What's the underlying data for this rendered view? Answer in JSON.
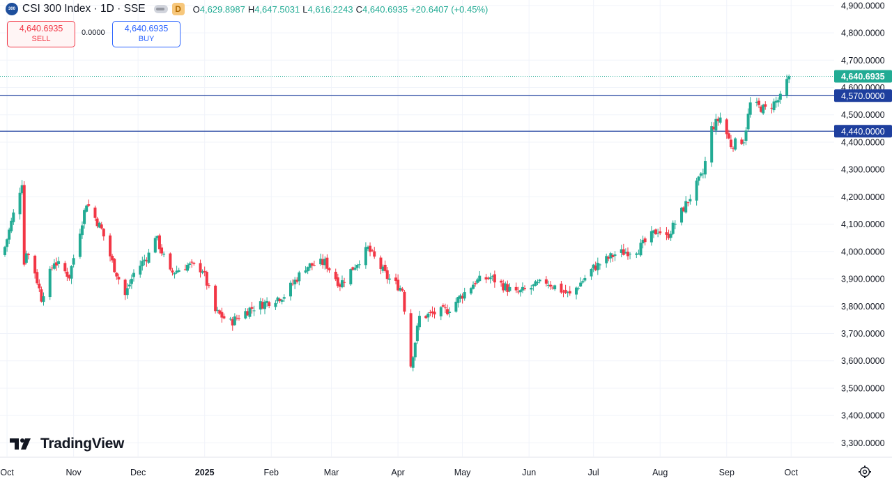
{
  "header": {
    "symbol_icon": "300",
    "title": "CSI 300 Index · 1D · SSE",
    "badge": "D",
    "o_label": "O",
    "o_value": "4,629.8987",
    "h_label": "H",
    "h_value": "4,647.5031",
    "l_label": "L",
    "l_value": "4,616.2243",
    "c_label": "C",
    "c_value": "4,640.6935",
    "change": "+20.6407 (+0.45%)"
  },
  "trade": {
    "sell_price": "4,640.6935",
    "sell_label": "SELL",
    "spread": "0.0000",
    "buy_price": "4,640.6935",
    "buy_label": "BUY"
  },
  "branding": {
    "logo_text": "TradingView"
  },
  "colors": {
    "up": "#22ab94",
    "down": "#f23645",
    "hline": "#1e3f9e",
    "last_price": "#22ab94"
  },
  "chart_data": {
    "type": "candlestick",
    "ylim": [
      3250,
      4920
    ],
    "yticks": [
      {
        "v": 4900,
        "label": "4,900.0000"
      },
      {
        "v": 4800,
        "label": "4,800.0000"
      },
      {
        "v": 4700,
        "label": "4,700.0000"
      },
      {
        "v": 4600,
        "label": "4,600.0000"
      },
      {
        "v": 4500,
        "label": "4,500.0000"
      },
      {
        "v": 4400,
        "label": "4,400.0000"
      },
      {
        "v": 4300,
        "label": "4,300.0000"
      },
      {
        "v": 4200,
        "label": "4,200.0000"
      },
      {
        "v": 4100,
        "label": "4,100.0000"
      },
      {
        "v": 4000,
        "label": "4,000.0000"
      },
      {
        "v": 3900,
        "label": "3,900.0000"
      },
      {
        "v": 3800,
        "label": "3,800.0000"
      },
      {
        "v": 3700,
        "label": "3,700.0000"
      },
      {
        "v": 3600,
        "label": "3,600.0000"
      },
      {
        "v": 3500,
        "label": "3,500.0000"
      },
      {
        "v": 3400,
        "label": "3,400.0000"
      },
      {
        "v": 3300,
        "label": "3,300.0000"
      }
    ],
    "xticks": [
      {
        "d": "2024-10-01",
        "label": "Oct"
      },
      {
        "d": "2024-11-01",
        "label": "Nov"
      },
      {
        "d": "2024-12-01",
        "label": "Dec"
      },
      {
        "d": "2025-01-01",
        "label": "2025",
        "bold": true
      },
      {
        "d": "2025-02-01",
        "label": "Feb"
      },
      {
        "d": "2025-03-01",
        "label": "Mar"
      },
      {
        "d": "2025-04-01",
        "label": "Apr"
      },
      {
        "d": "2025-05-01",
        "label": "May"
      },
      {
        "d": "2025-06-01",
        "label": "Jun"
      },
      {
        "d": "2025-07-01",
        "label": "Jul"
      },
      {
        "d": "2025-08-01",
        "label": "Aug"
      },
      {
        "d": "2025-09-01",
        "label": "Sep"
      },
      {
        "d": "2025-10-01",
        "label": "Oct"
      }
    ],
    "x_start": "2024-09-30",
    "x_end": "2025-10-22",
    "horizontal_lines": [
      {
        "value": 4570,
        "label": "4,570.0000"
      },
      {
        "value": 4440,
        "label": "4,440.0000"
      }
    ],
    "last_price": {
      "value": 4640.6935,
      "label": "4,640.6935"
    },
    "anchors": [
      {
        "d": "2024-09-30",
        "c": 4017
      },
      {
        "d": "2024-10-08",
        "c": 4256
      },
      {
        "d": "2024-10-09",
        "c": 3955
      },
      {
        "d": "2024-10-10",
        "c": 4005
      },
      {
        "d": "2024-10-14",
        "c": 3925
      },
      {
        "d": "2024-10-17",
        "c": 3830
      },
      {
        "d": "2024-10-23",
        "c": 3965
      },
      {
        "d": "2024-10-30",
        "c": 3910
      },
      {
        "d": "2024-11-07",
        "c": 4180
      },
      {
        "d": "2024-11-14",
        "c": 4080
      },
      {
        "d": "2024-11-19",
        "c": 3960
      },
      {
        "d": "2024-11-25",
        "c": 3840
      },
      {
        "d": "2024-11-29",
        "c": 3920
      },
      {
        "d": "2024-12-06",
        "c": 3990
      },
      {
        "d": "2024-12-09",
        "c": 4060
      },
      {
        "d": "2024-12-16",
        "c": 3920
      },
      {
        "d": "2024-12-24",
        "c": 3950
      },
      {
        "d": "2024-12-31",
        "c": 3935
      },
      {
        "d": "2025-01-06",
        "c": 3780
      },
      {
        "d": "2025-01-13",
        "c": 3740
      },
      {
        "d": "2025-01-22",
        "c": 3790
      },
      {
        "d": "2025-02-07",
        "c": 3840
      },
      {
        "d": "2025-02-17",
        "c": 3945
      },
      {
        "d": "2025-02-26",
        "c": 3960
      },
      {
        "d": "2025-03-05",
        "c": 3880
      },
      {
        "d": "2025-03-18",
        "c": 4010
      },
      {
        "d": "2025-03-27",
        "c": 3905
      },
      {
        "d": "2025-04-03",
        "c": 3862
      },
      {
        "d": "2025-04-07",
        "c": 3585
      },
      {
        "d": "2025-04-11",
        "c": 3760
      },
      {
        "d": "2025-04-24",
        "c": 3785
      },
      {
        "d": "2025-05-07",
        "c": 3890
      },
      {
        "d": "2025-05-14",
        "c": 3905
      },
      {
        "d": "2025-05-26",
        "c": 3845
      },
      {
        "d": "2025-06-09",
        "c": 3890
      },
      {
        "d": "2025-06-20",
        "c": 3840
      },
      {
        "d": "2025-07-01",
        "c": 3940
      },
      {
        "d": "2025-07-11",
        "c": 3990
      },
      {
        "d": "2025-07-22",
        "c": 4010
      },
      {
        "d": "2025-07-31",
        "c": 4080
      },
      {
        "d": "2025-08-04",
        "c": 4050
      },
      {
        "d": "2025-08-15",
        "c": 4200
      },
      {
        "d": "2025-08-21",
        "c": 4285
      },
      {
        "d": "2025-08-25",
        "c": 4450
      },
      {
        "d": "2025-08-29",
        "c": 4490
      },
      {
        "d": "2025-09-03",
        "c": 4390
      },
      {
        "d": "2025-09-09",
        "c": 4410
      },
      {
        "d": "2025-09-12",
        "c": 4540
      },
      {
        "d": "2025-09-19",
        "c": 4520
      },
      {
        "d": "2025-09-26",
        "c": 4560
      },
      {
        "d": "2025-09-30",
        "c": 4640.6935
      }
    ]
  }
}
